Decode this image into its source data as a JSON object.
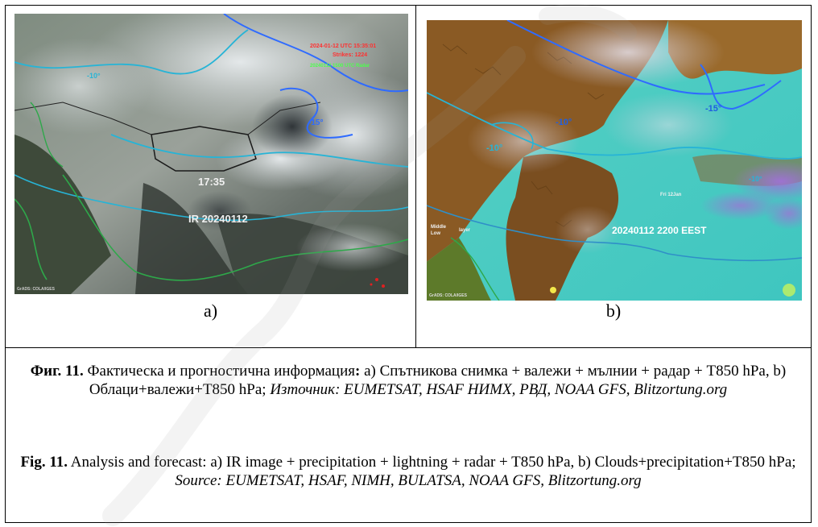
{
  "figure": {
    "panel_a": {
      "label": "a)",
      "overlay_time": "17:35",
      "overlay_title": "IR 20240112",
      "overlay_red_line1": "2024-01-12 UTC 15:35:01",
      "overlay_red_line2": "Strikes: 1224",
      "overlay_green": "20240112 1500 UTC Radar",
      "overlay_iso_a": "-10°",
      "overlay_iso_b": "-15°",
      "credit": "GrADS: COLA/IGES"
    },
    "panel_b": {
      "label": "b)",
      "overlay_title": "20240112  2200 EEST",
      "overlay_iso_a": "-10°",
      "overlay_iso_b": "-10°",
      "overlay_iso_c": "-15°",
      "overlay_iso_d": "-10°",
      "overlay_small1": "Fri 12Jan",
      "overlay_small2": "Middle",
      "overlay_small3": "Low",
      "overlay_small4": "layer",
      "credit": "GrADS: COLA/IGES"
    }
  },
  "caption_bg": {
    "prefix": "Фиг. 11.",
    "text": " Фактическа и прогностична информация",
    "colon": ":",
    "text2": " а) Спътникова снимка + валежи + мълнии + радар + Т850 hPa,  b) Облаци+валежи+Т850 hPa; ",
    "source": "Източник: EUMETSAT, HSAF НИМХ, РВД, NOAA GFS, Blitzortung.org"
  },
  "caption_en": {
    "prefix": "Fig. 11.",
    "text": " Analysis and forecast: a) IR image + precipitation + lightning + radar + T850 hPa, b) Clouds+precipitation+T850 hPa; ",
    "source": "Source: EUMETSAT, HSAF, NIMH, BULATSA, NOAA GFS, Blitzortung.org"
  },
  "colors": {
    "isotherm_blue": "#2f6bff",
    "isotherm_cyan": "#27b4d6",
    "isotherm_green": "#2ea84a",
    "watermark": "#9a9a9a"
  }
}
